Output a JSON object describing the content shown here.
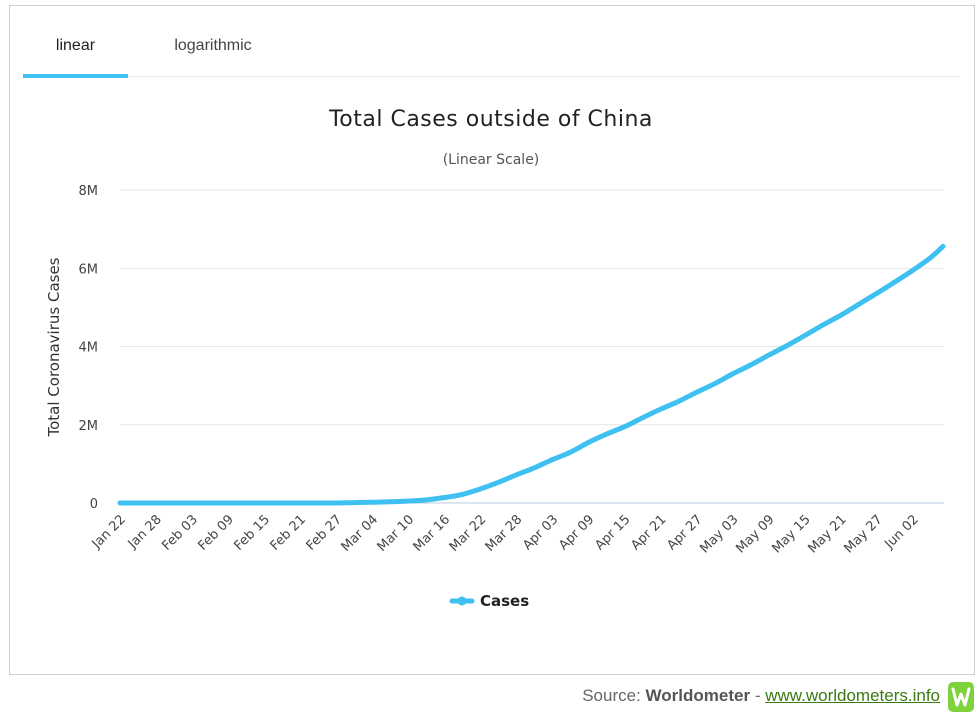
{
  "tabs": [
    {
      "label": "linear",
      "active": true
    },
    {
      "label": "logarithmic",
      "active": false
    }
  ],
  "source": {
    "prefix": "Source:",
    "name": "Worldometer",
    "separator": "-",
    "link": "www.worldometers.info"
  },
  "colors": {
    "series": "#3ec0f0",
    "tab_underline": "#3ec0f0",
    "grid": "#e6e6e6",
    "link": "#3a7a13",
    "logo": "#7ed23b"
  },
  "chart_data": {
    "type": "line",
    "title": "Total Cases outside of China",
    "subtitle": "(Linear Scale)",
    "ylabel": "Total Coronavirus Cases",
    "xlabel": "",
    "ylim": [
      0,
      8000000
    ],
    "yticks": [
      0,
      2000000,
      4000000,
      6000000,
      8000000
    ],
    "ytick_labels": [
      "0",
      "2M",
      "4M",
      "6M",
      "8M"
    ],
    "x_range": [
      "2020-01-22",
      "2020-06-07"
    ],
    "xtick_labels": [
      "Jan 22",
      "Jan 28",
      "Feb 03",
      "Feb 09",
      "Feb 15",
      "Feb 21",
      "Feb 27",
      "Mar 04",
      "Mar 10",
      "Mar 16",
      "Mar 22",
      "Mar 28",
      "Apr 03",
      "Apr 09",
      "Apr 15",
      "Apr 21",
      "Apr 27",
      "May 03",
      "May 09",
      "May 15",
      "May 21",
      "May 27",
      "Jun 02"
    ],
    "xtick_dates": [
      "2020-01-22",
      "2020-01-28",
      "2020-02-03",
      "2020-02-09",
      "2020-02-15",
      "2020-02-21",
      "2020-02-27",
      "2020-03-04",
      "2020-03-10",
      "2020-03-16",
      "2020-03-22",
      "2020-03-28",
      "2020-04-03",
      "2020-04-09",
      "2020-04-15",
      "2020-04-21",
      "2020-04-27",
      "2020-05-03",
      "2020-05-09",
      "2020-05-15",
      "2020-05-21",
      "2020-05-27",
      "2020-06-02"
    ],
    "grid": true,
    "legend": "bottom-center",
    "series": [
      {
        "name": "Cases",
        "x": [
          "2020-01-22",
          "2020-01-28",
          "2020-02-03",
          "2020-02-09",
          "2020-02-15",
          "2020-02-21",
          "2020-02-27",
          "2020-03-01",
          "2020-03-04",
          "2020-03-07",
          "2020-03-10",
          "2020-03-13",
          "2020-03-16",
          "2020-03-19",
          "2020-03-22",
          "2020-03-25",
          "2020-03-28",
          "2020-03-31",
          "2020-04-03",
          "2020-04-06",
          "2020-04-09",
          "2020-04-12",
          "2020-04-15",
          "2020-04-18",
          "2020-04-21",
          "2020-04-24",
          "2020-04-27",
          "2020-04-30",
          "2020-05-03",
          "2020-05-06",
          "2020-05-09",
          "2020-05-12",
          "2020-05-15",
          "2020-05-18",
          "2020-05-21",
          "2020-05-24",
          "2020-05-27",
          "2020-05-30",
          "2020-06-02",
          "2020-06-05",
          "2020-06-07"
        ],
        "values": [
          0,
          0,
          0,
          0,
          0,
          0,
          0,
          10000,
          20000,
          30000,
          50000,
          80000,
          140000,
          220000,
          360000,
          530000,
          720000,
          900000,
          1110000,
          1300000,
          1550000,
          1760000,
          1950000,
          2180000,
          2400000,
          2600000,
          2830000,
          3050000,
          3300000,
          3530000,
          3780000,
          4020000,
          4280000,
          4550000,
          4800000,
          5080000,
          5360000,
          5650000,
          5950000,
          6280000,
          6560000
        ]
      }
    ]
  }
}
